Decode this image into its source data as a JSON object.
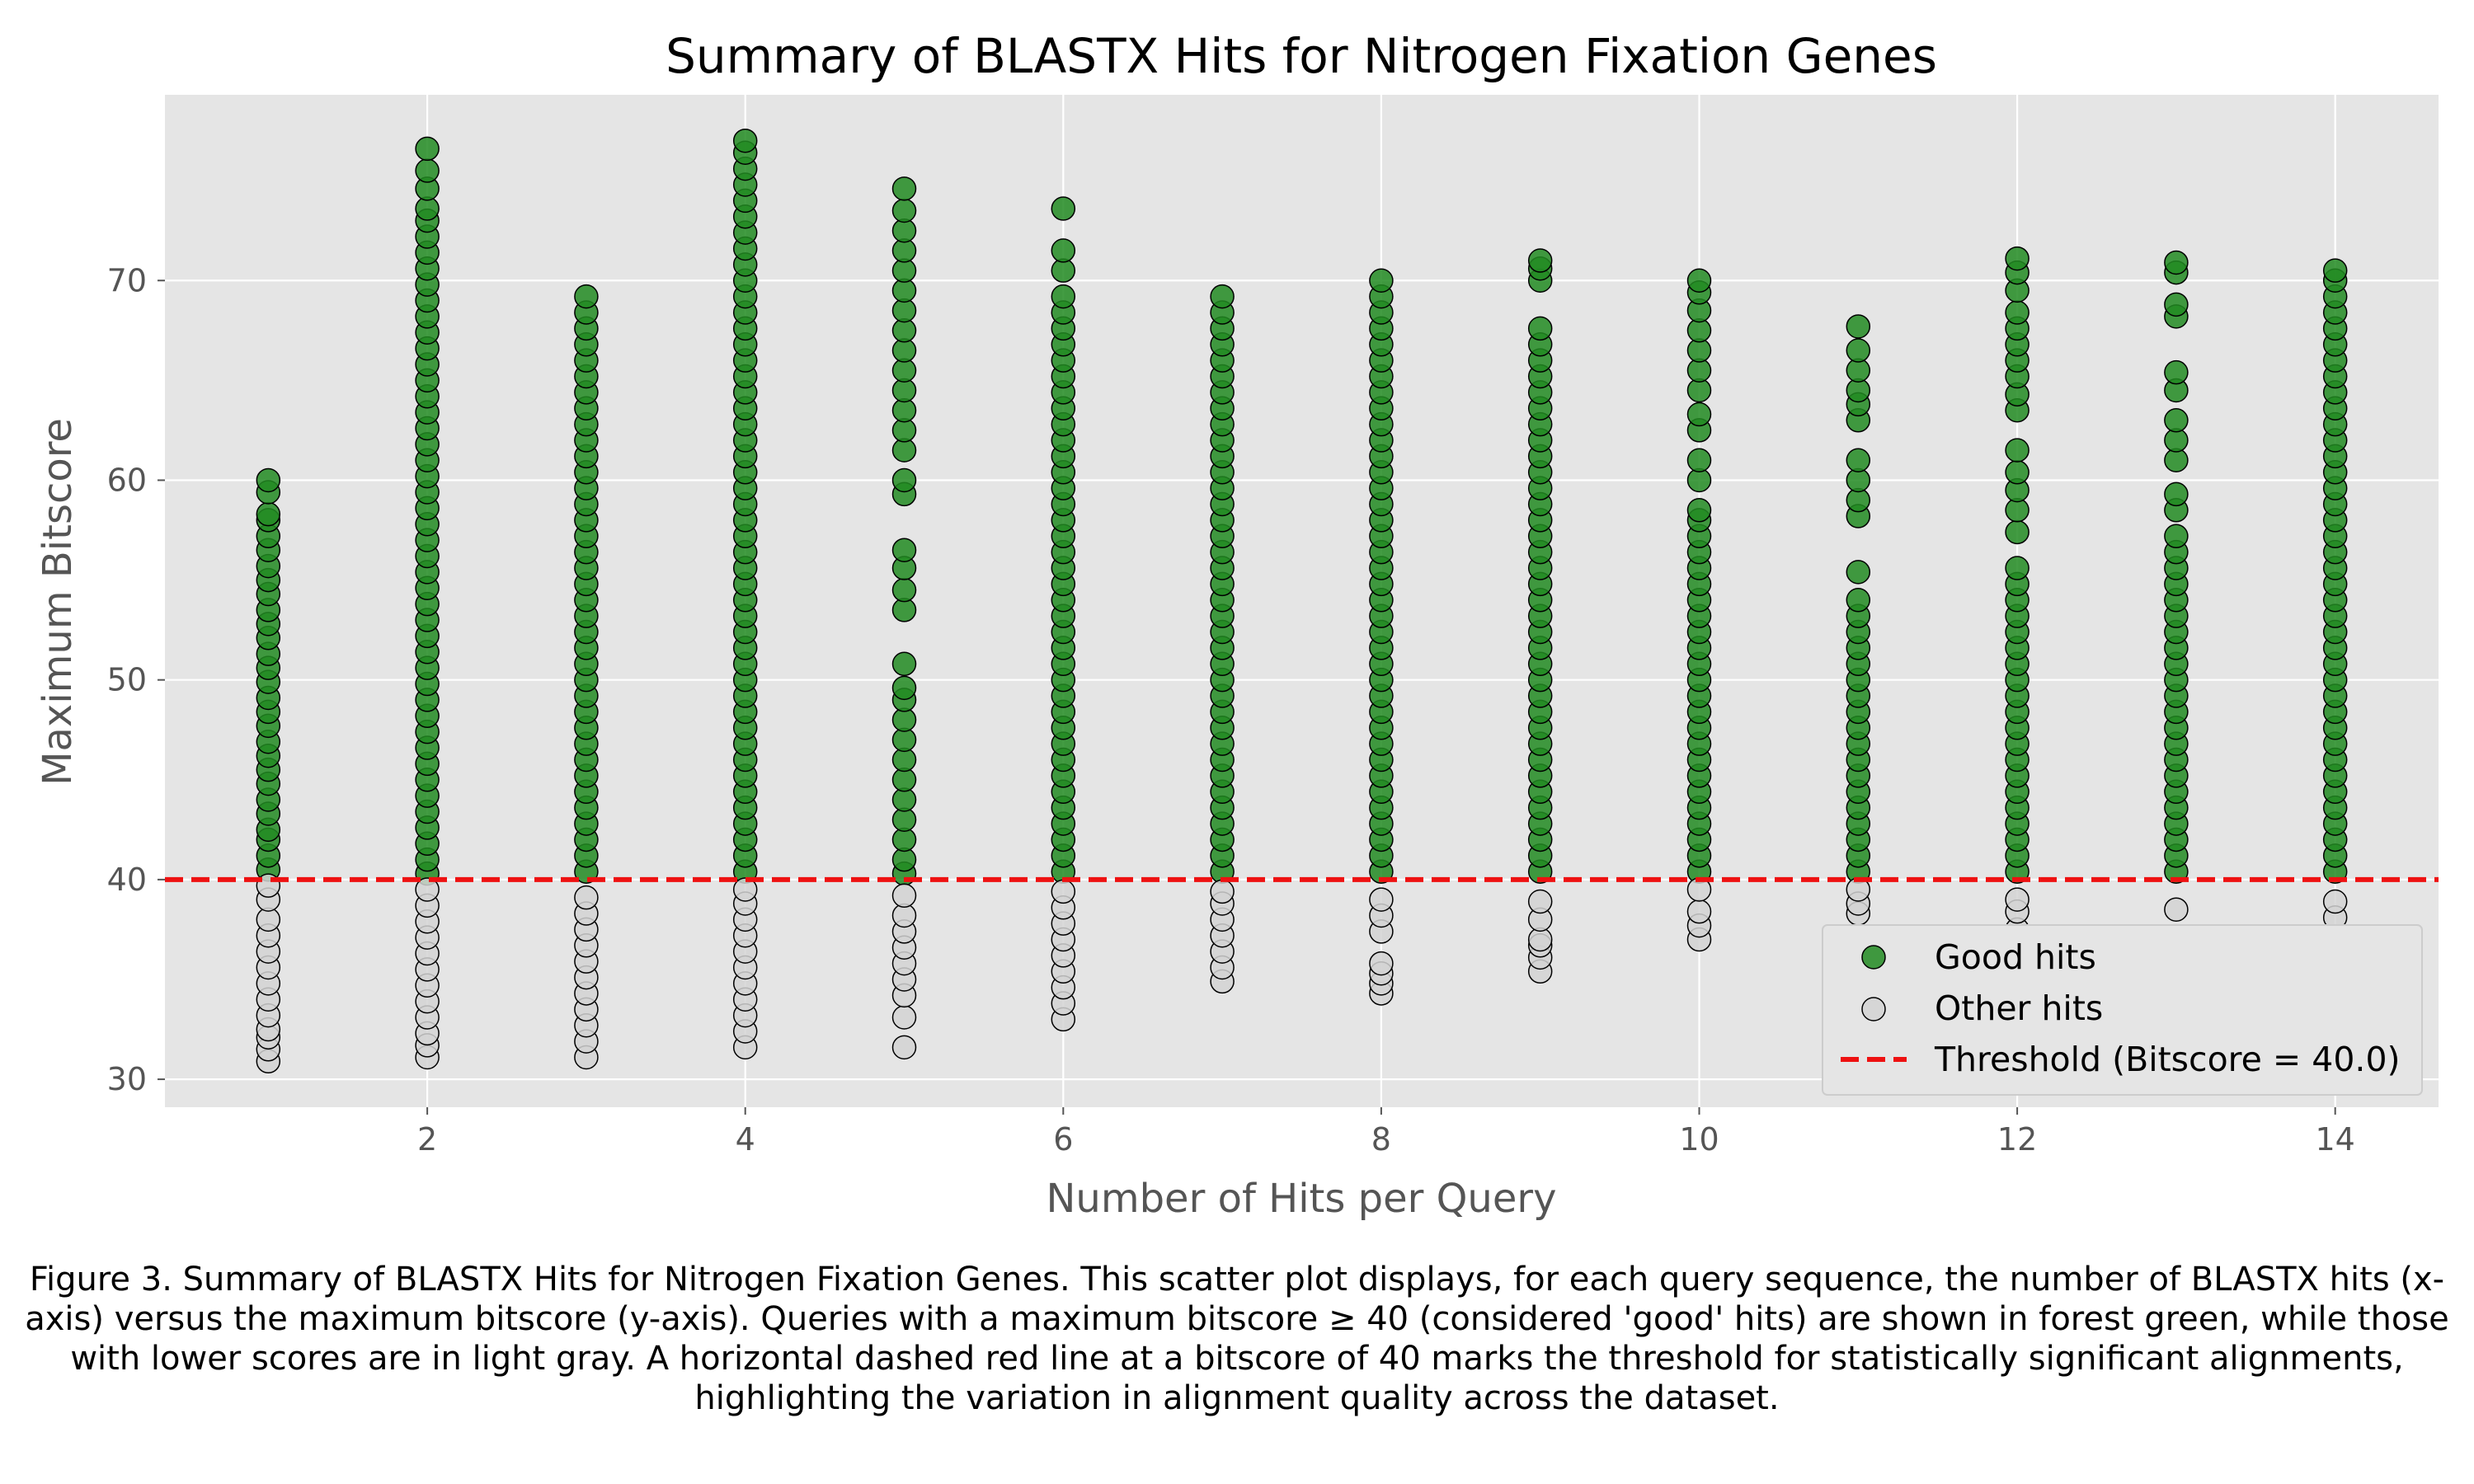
{
  "chart_data": {
    "type": "scatter",
    "title": "Summary of BLASTX Hits for Nitrogen Fixation Genes",
    "xlabel": "Number of Hits per Query",
    "ylabel": "Maximum Bitscore",
    "xlim": [
      0.35,
      14.65
    ],
    "ylim": [
      28.6,
      79.3
    ],
    "xticks": [
      2,
      4,
      6,
      8,
      10,
      12,
      14
    ],
    "yticks": [
      30,
      40,
      50,
      60,
      70
    ],
    "grid": true,
    "legend_position": "lower-right",
    "threshold": {
      "value": 40.0,
      "label": "Threshold (Bitscore = 40.0)",
      "color": "#ee1111"
    },
    "series": [
      {
        "name": "Good hits",
        "color": "#228b22",
        "points": [
          {
            "x": 1,
            "y": [
              40.5,
              41.2,
              42.0,
              42.5,
              43.3,
              44.0,
              44.8,
              45.5,
              46.2,
              46.9,
              47.7,
              48.4,
              49.1,
              49.9,
              50.6,
              51.3,
              52.1,
              52.8,
              53.5,
              54.3,
              55.0,
              55.7,
              56.5,
              57.2,
              58.0,
              58.3,
              59.4,
              60.0
            ]
          },
          {
            "x": 2,
            "y": [
              40.3,
              41.0,
              41.8,
              42.6,
              43.4,
              44.2,
              45.0,
              45.8,
              46.6,
              47.4,
              48.2,
              49.0,
              49.8,
              50.6,
              51.4,
              52.2,
              53.0,
              53.8,
              54.6,
              55.4,
              56.2,
              57.0,
              57.8,
              58.6,
              59.4,
              60.2,
              61.0,
              61.8,
              62.6,
              63.4,
              64.2,
              65.0,
              65.8,
              66.6,
              67.4,
              68.2,
              69.0,
              69.8,
              70.6,
              71.4,
              72.2,
              73.0,
              73.6,
              74.6,
              75.5,
              76.6
            ]
          },
          {
            "x": 3,
            "y": [
              40.4,
              41.2,
              42.0,
              42.8,
              43.6,
              44.4,
              45.2,
              46.0,
              46.8,
              47.6,
              48.4,
              49.2,
              50.0,
              50.8,
              51.6,
              52.4,
              53.2,
              54.0,
              54.8,
              55.6,
              56.4,
              57.2,
              58.0,
              58.8,
              59.6,
              60.4,
              61.2,
              62.0,
              62.8,
              63.6,
              64.4,
              65.2,
              66.0,
              66.8,
              67.6,
              68.4,
              69.2
            ]
          },
          {
            "x": 4,
            "y": [
              40.4,
              41.2,
              42.0,
              42.8,
              43.6,
              44.4,
              45.2,
              46.0,
              46.8,
              47.6,
              48.4,
              49.2,
              50.0,
              50.8,
              51.6,
              52.4,
              53.2,
              54.0,
              54.8,
              55.6,
              56.4,
              57.2,
              58.0,
              58.8,
              59.6,
              60.4,
              61.2,
              62.0,
              62.8,
              63.6,
              64.4,
              65.2,
              66.0,
              66.8,
              67.6,
              68.4,
              69.2,
              70.0,
              70.8,
              71.6,
              72.4,
              73.2,
              74.0,
              74.8,
              75.6,
              76.4,
              77.0
            ]
          },
          {
            "x": 5,
            "y": [
              40.3,
              41.0,
              42.0,
              43.0,
              44.0,
              45.0,
              46.0,
              47.0,
              48.0,
              49.0,
              49.6,
              50.8,
              53.5,
              54.5,
              55.6,
              56.5,
              59.3,
              60.0,
              61.5,
              62.5,
              63.5,
              64.5,
              65.5,
              66.5,
              67.5,
              68.5,
              69.5,
              70.5,
              71.5,
              72.5,
              73.5,
              74.6
            ]
          },
          {
            "x": 6,
            "y": [
              40.4,
              41.2,
              42.0,
              42.8,
              43.6,
              44.4,
              45.2,
              46.0,
              46.8,
              47.6,
              48.4,
              49.2,
              50.0,
              50.8,
              51.6,
              52.4,
              53.2,
              54.0,
              54.8,
              55.6,
              56.4,
              57.2,
              58.0,
              58.8,
              59.6,
              60.4,
              61.2,
              62.0,
              62.8,
              63.6,
              64.4,
              65.2,
              66.0,
              66.8,
              67.6,
              68.4,
              69.2,
              70.5,
              71.5,
              73.6
            ]
          },
          {
            "x": 7,
            "y": [
              40.4,
              41.2,
              42.0,
              42.8,
              43.6,
              44.4,
              45.2,
              46.0,
              46.8,
              47.6,
              48.4,
              49.2,
              50.0,
              50.8,
              51.6,
              52.4,
              53.2,
              54.0,
              54.8,
              55.6,
              56.4,
              57.2,
              58.0,
              58.8,
              59.6,
              60.4,
              61.2,
              62.0,
              62.8,
              63.6,
              64.4,
              65.2,
              66.0,
              66.8,
              67.6,
              68.4,
              69.2
            ]
          },
          {
            "x": 8,
            "y": [
              40.4,
              41.2,
              42.0,
              42.8,
              43.6,
              44.4,
              45.2,
              46.0,
              46.8,
              47.6,
              48.4,
              49.2,
              50.0,
              50.8,
              51.6,
              52.4,
              53.2,
              54.0,
              54.8,
              55.6,
              56.4,
              57.2,
              58.0,
              58.8,
              59.6,
              60.4,
              61.2,
              62.0,
              62.8,
              63.6,
              64.4,
              65.2,
              66.0,
              66.8,
              67.6,
              68.4,
              69.2,
              70.0
            ]
          },
          {
            "x": 9,
            "y": [
              40.4,
              41.2,
              42.0,
              42.8,
              43.6,
              44.4,
              45.2,
              46.0,
              46.8,
              47.6,
              48.4,
              49.2,
              50.0,
              50.8,
              51.6,
              52.4,
              53.2,
              54.0,
              54.8,
              55.6,
              56.4,
              57.2,
              58.0,
              58.8,
              59.6,
              60.4,
              61.2,
              62.0,
              62.8,
              63.6,
              64.4,
              65.2,
              66.0,
              66.8,
              67.6,
              70.0,
              70.6,
              71.0
            ]
          },
          {
            "x": 10,
            "y": [
              40.4,
              41.2,
              42.0,
              42.8,
              43.6,
              44.4,
              45.2,
              46.0,
              46.8,
              47.6,
              48.4,
              49.2,
              50.0,
              50.8,
              51.6,
              52.4,
              53.2,
              54.0,
              54.8,
              55.6,
              56.4,
              57.2,
              58.0,
              58.5,
              60.0,
              61.0,
              62.5,
              63.3,
              64.5,
              65.5,
              66.5,
              67.5,
              68.5,
              69.4,
              70.0
            ]
          },
          {
            "x": 11,
            "y": [
              40.4,
              41.2,
              42.0,
              42.8,
              43.6,
              44.4,
              45.2,
              46.0,
              46.8,
              47.6,
              48.4,
              49.2,
              50.0,
              50.8,
              51.6,
              52.4,
              53.2,
              54.0,
              55.4,
              58.2,
              59.0,
              60.0,
              61.0,
              63.0,
              63.8,
              64.5,
              65.5,
              66.5,
              67.7
            ]
          },
          {
            "x": 12,
            "y": [
              40.4,
              41.2,
              42.0,
              42.8,
              43.6,
              44.4,
              45.2,
              46.0,
              46.8,
              47.6,
              48.4,
              49.2,
              50.0,
              50.8,
              51.6,
              52.4,
              53.2,
              54.0,
              54.8,
              55.6,
              57.4,
              58.5,
              59.5,
              60.4,
              61.5,
              63.5,
              64.3,
              65.2,
              66.0,
              66.8,
              67.6,
              68.4,
              69.5,
              70.4,
              71.1
            ]
          },
          {
            "x": 13,
            "y": [
              40.4,
              41.2,
              42.0,
              42.8,
              43.6,
              44.4,
              45.2,
              46.0,
              46.8,
              47.6,
              48.4,
              49.2,
              50.0,
              50.8,
              51.6,
              52.4,
              53.2,
              54.0,
              54.8,
              55.6,
              56.4,
              57.2,
              58.5,
              59.3,
              61.0,
              62.0,
              63.0,
              64.5,
              65.4,
              68.2,
              68.8,
              70.4,
              70.9
            ]
          },
          {
            "x": 14,
            "y": [
              40.4,
              41.2,
              42.0,
              42.8,
              43.6,
              44.4,
              45.2,
              46.0,
              46.8,
              47.6,
              48.4,
              49.2,
              50.0,
              50.8,
              51.6,
              52.4,
              53.2,
              54.0,
              54.8,
              55.6,
              56.4,
              57.2,
              58.0,
              58.8,
              59.6,
              60.4,
              61.2,
              62.0,
              62.8,
              63.6,
              64.4,
              65.2,
              66.0,
              66.8,
              67.6,
              68.4,
              69.2,
              70.0,
              70.5
            ]
          }
        ]
      },
      {
        "name": "Other hits",
        "color": "#d3d3d3",
        "points": [
          {
            "x": 1,
            "y": [
              30.9,
              31.5,
              32.1,
              32.5,
              33.2,
              34.0,
              34.8,
              35.6,
              36.4,
              37.2,
              38.0,
              39.0,
              39.7
            ]
          },
          {
            "x": 2,
            "y": [
              31.1,
              31.7,
              32.3,
              33.1,
              33.9,
              34.7,
              35.5,
              36.3,
              37.1,
              37.9,
              38.7,
              39.5
            ]
          },
          {
            "x": 3,
            "y": [
              31.1,
              31.9,
              32.7,
              33.5,
              34.3,
              35.1,
              35.9,
              36.7,
              37.5,
              38.3,
              39.1
            ]
          },
          {
            "x": 4,
            "y": [
              31.6,
              32.4,
              33.2,
              34.0,
              34.8,
              35.6,
              36.4,
              37.2,
              38.0,
              38.8,
              39.5
            ]
          },
          {
            "x": 5,
            "y": [
              31.6,
              33.1,
              34.2,
              35.0,
              35.8,
              36.6,
              37.4,
              38.2,
              39.2
            ]
          },
          {
            "x": 6,
            "y": [
              33.0,
              33.8,
              34.6,
              35.4,
              36.2,
              37.0,
              37.8,
              38.6,
              39.4
            ]
          },
          {
            "x": 7,
            "y": [
              34.9,
              35.6,
              36.4,
              37.2,
              38.0,
              38.8,
              39.4
            ]
          },
          {
            "x": 8,
            "y": [
              34.3,
              34.8,
              35.3,
              35.8,
              37.4,
              38.2,
              39.0
            ]
          },
          {
            "x": 9,
            "y": [
              35.4,
              36.1,
              36.7,
              37.0,
              38.0,
              38.9
            ]
          },
          {
            "x": 10,
            "y": [
              37.0,
              37.7,
              38.4,
              39.5
            ]
          },
          {
            "x": 11,
            "y": [
              35.4,
              38.3,
              38.8,
              39.5
            ]
          },
          {
            "x": 12,
            "y": [
              36.5,
              37.5,
              38.4,
              39.0
            ]
          },
          {
            "x": 13,
            "y": [
              38.5
            ]
          },
          {
            "x": 14,
            "y": [
              38.1,
              38.9
            ]
          }
        ]
      }
    ]
  },
  "caption": "Figure 3. Summary of BLASTX Hits for Nitrogen Fixation Genes. This scatter plot displays, for each query sequence, the number of BLASTX hits (x-axis) versus the maximum bitscore (y-axis). Queries with a maximum bitscore ≥ 40 (considered 'good' hits) are shown in forest green, while those with lower scores are in light gray. A horizontal dashed red line at a bitscore of 40 marks the threshold for statistically significant alignments, highlighting the variation in alignment quality across the dataset."
}
